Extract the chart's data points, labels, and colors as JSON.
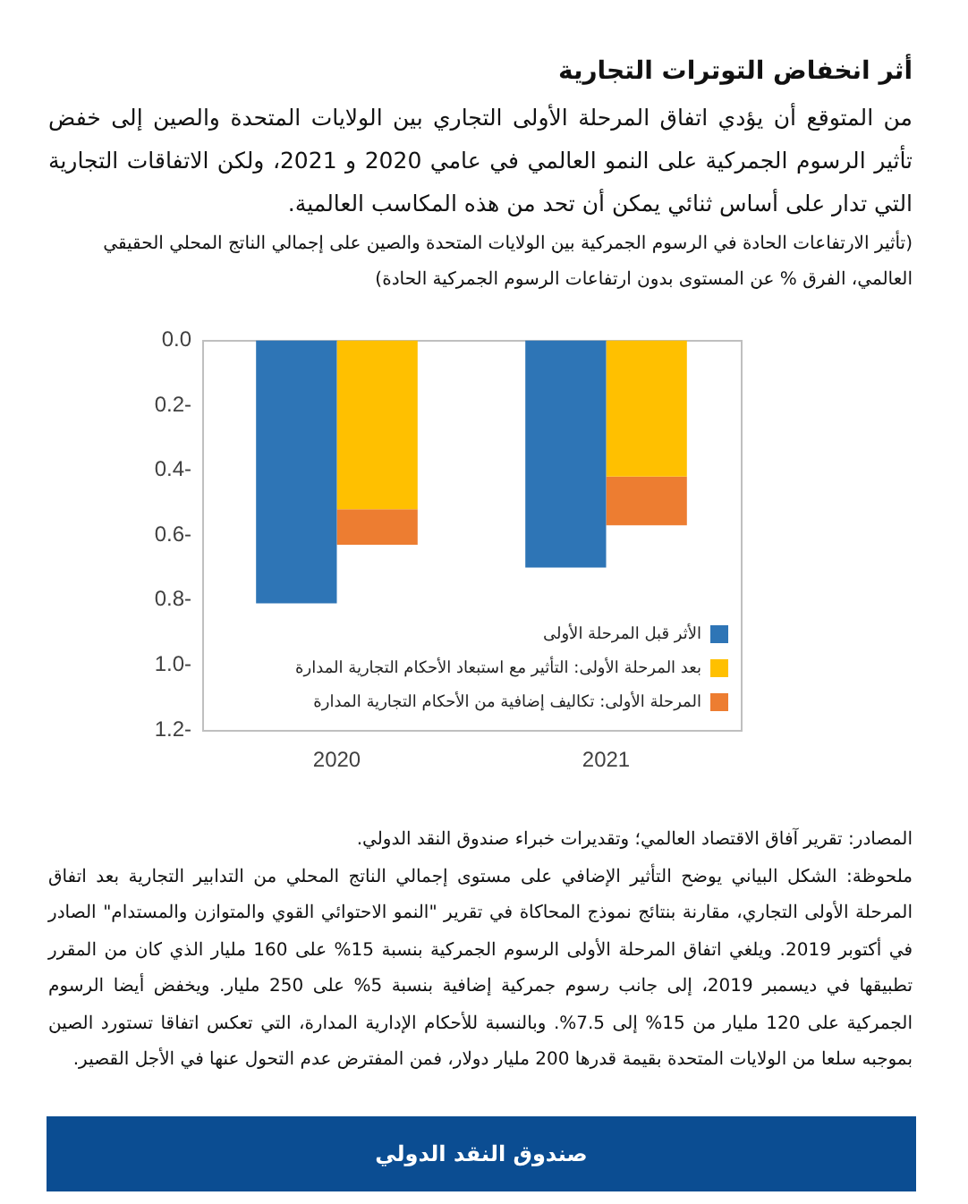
{
  "chart_data": {
    "type": "bar",
    "title": "أثر انخفاض التوترات التجارية",
    "subtitle": "من المتوقع أن يؤدي اتفاق المرحلة الأولى التجاري بين الولايات المتحدة والصين إلى خفض تأثير الرسوم الجمركية على النمو العالمي في عامي 2020 و 2021، ولكن الاتفاقات التجارية التي تدار على أساس ثنائي يمكن أن تحد من هذه المكاسب العالمية.",
    "ylabel": "(تأثير الارتفاعات الحادة في الرسوم الجمركية بين الولايات المتحدة والصين على إجمالي الناتج المحلي الحقيقي العالمي، الفرق % عن المستوى بدون ارتفاعات الرسوم الجمركية الحادة)",
    "categories": [
      "2020",
      "2021"
    ],
    "series": [
      {
        "name": "الأثر قبل المرحلة الأولى",
        "color": "#2e75b6",
        "values": [
          -0.81,
          -0.7
        ]
      },
      {
        "name": "بعد المرحلة الأولى: التأثير مع استبعاد الأحكام التجارية المدارة",
        "color": "#ffc000",
        "values": [
          -0.52,
          -0.42
        ],
        "base": [
          0,
          0
        ]
      },
      {
        "name": "المرحلة الأولى: تكاليف إضافية من الأحكام التجارية المدارة",
        "color": "#ed7d31",
        "values": [
          -0.11,
          -0.15
        ],
        "base": [
          -0.52,
          -0.42
        ]
      }
    ],
    "ylim": [
      -1.2,
      0
    ],
    "yticks": [
      {
        "value": 0,
        "label": "0.0"
      },
      {
        "value": -0.2,
        "label": "0.2-"
      },
      {
        "value": -0.4,
        "label": "0.4-"
      },
      {
        "value": -0.6,
        "label": "0.6-"
      },
      {
        "value": -0.8,
        "label": "0.8-"
      },
      {
        "value": -1,
        "label": "1.0-"
      },
      {
        "value": -1.2,
        "label": "1.2-"
      }
    ],
    "grid": false,
    "legend": "bottom right",
    "annotations": [
      "المصادر: تقرير آفاق الاقتصاد العالمي؛ وتقديرات خبراء صندوق النقد الدولي.",
      "ملحوظة: الشكل البياني يوضح التأثير الإضافي على مستوى إجمالي الناتج المحلي من التدابير التجارية بعد اتفاق المرحلة الأولى التجاري، مقارنة بنتائج نموذج المحاكاة في تقرير \"النمو الاحتوائي القوي والمتوازن والمستدام\" الصادر في أكتوبر 2019. ويلغي اتفاق المرحلة الأولى الرسوم الجمركية بنسبة 15% على 160 مليار الذي كان من المقرر تطبيقها في ديسمبر 2019، إلى جانب رسوم جمركية إضافية بنسبة 5% على 250 مليار. ويخفض أيضا الرسوم الجمركية على 120 مليار من 15% إلى 7.5%. وبالنسبة للأحكام الإدارية المدارة، التي تعكس اتفاقا تستورد الصين بموجبه سلعا من الولايات المتحدة بقيمة قدرها 200 مليار دولار، فمن المفترض عدم التحول عنها في الأجل القصير.",
      "صندوق النقد الدولي"
    ]
  }
}
